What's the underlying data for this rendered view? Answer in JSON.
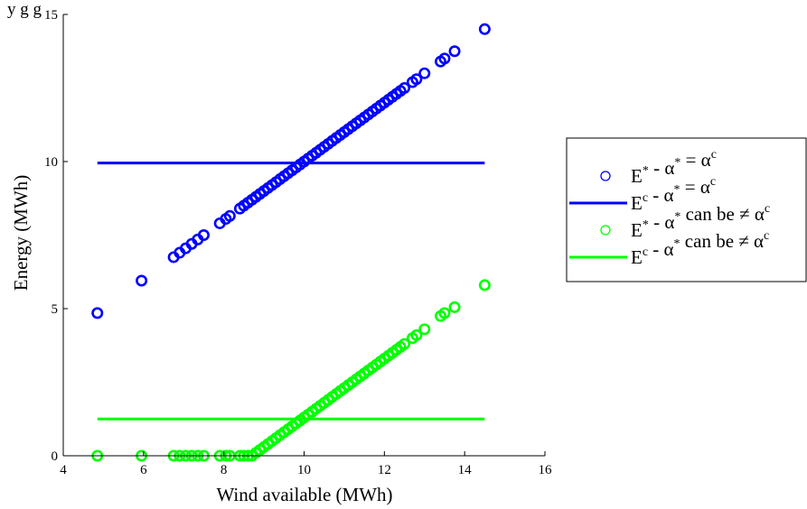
{
  "chart_data": {
    "type": "scatter",
    "title": "",
    "header_fragment": "y       g g",
    "xlabel": "Wind available (MWh)",
    "ylabel": "Energy (MWh)",
    "xlim": [
      4,
      16
    ],
    "ylim": [
      0,
      15
    ],
    "xticks": [
      4,
      6,
      8,
      10,
      12,
      14,
      16
    ],
    "yticks": [
      0,
      5,
      10,
      15
    ],
    "grid": false,
    "legend_position": "right-outside",
    "colors": {
      "blue": "#0000ff",
      "green": "#00ff00",
      "axis": "#000000"
    },
    "series": [
      {
        "name": "E* - α* = αc",
        "kind": "markers",
        "marker": "circle-open",
        "color": "#0000ff",
        "x": [
          4.85,
          5.95,
          6.75,
          6.9,
          7.05,
          7.2,
          7.35,
          7.5,
          7.9,
          8.05,
          8.15,
          8.4,
          8.5,
          8.6,
          8.7,
          8.8,
          8.9,
          9.0,
          9.1,
          9.2,
          9.3,
          9.4,
          9.5,
          9.6,
          9.7,
          9.8,
          9.9,
          10.0,
          10.1,
          10.2,
          10.3,
          10.4,
          10.5,
          10.6,
          10.7,
          10.8,
          10.9,
          11.0,
          11.1,
          11.2,
          11.3,
          11.4,
          11.5,
          11.6,
          11.7,
          11.8,
          11.9,
          12.0,
          12.1,
          12.2,
          12.3,
          12.4,
          12.5,
          12.7,
          12.8,
          13.0,
          13.4,
          13.5,
          13.75,
          14.5
        ],
        "y": [
          4.85,
          5.95,
          6.75,
          6.9,
          7.05,
          7.2,
          7.35,
          7.5,
          7.9,
          8.05,
          8.15,
          8.4,
          8.5,
          8.6,
          8.7,
          8.8,
          8.9,
          9.0,
          9.1,
          9.2,
          9.3,
          9.4,
          9.5,
          9.6,
          9.7,
          9.8,
          9.9,
          10.0,
          10.1,
          10.2,
          10.3,
          10.4,
          10.5,
          10.6,
          10.7,
          10.8,
          10.9,
          11.0,
          11.1,
          11.2,
          11.3,
          11.4,
          11.5,
          11.6,
          11.7,
          11.8,
          11.9,
          12.0,
          12.1,
          12.2,
          12.3,
          12.4,
          12.5,
          12.7,
          12.8,
          13.0,
          13.4,
          13.5,
          13.75,
          14.5
        ]
      },
      {
        "name": "Ec - α* = αc",
        "kind": "line",
        "color": "#0000ff",
        "x": [
          4.85,
          14.5
        ],
        "y": [
          9.95,
          9.95
        ]
      },
      {
        "name": "E* - α* can be ≠ αc",
        "kind": "markers",
        "marker": "circle-open",
        "color": "#00ff00",
        "x": [
          4.85,
          5.95,
          6.75,
          6.9,
          7.05,
          7.2,
          7.35,
          7.5,
          7.9,
          8.05,
          8.15,
          8.4,
          8.5,
          8.6,
          8.7,
          8.8,
          8.9,
          9.0,
          9.1,
          9.2,
          9.3,
          9.4,
          9.5,
          9.6,
          9.7,
          9.8,
          9.9,
          10.0,
          10.1,
          10.2,
          10.3,
          10.4,
          10.5,
          10.6,
          10.7,
          10.8,
          10.9,
          11.0,
          11.1,
          11.2,
          11.3,
          11.4,
          11.5,
          11.6,
          11.7,
          11.8,
          11.9,
          12.0,
          12.1,
          12.2,
          12.3,
          12.4,
          12.5,
          12.7,
          12.8,
          13.0,
          13.4,
          13.5,
          13.75,
          14.5
        ],
        "y": [
          0,
          0,
          0,
          0,
          0,
          0,
          0,
          0,
          0,
          0,
          0,
          0,
          0,
          0,
          0,
          0.1,
          0.2,
          0.3,
          0.4,
          0.5,
          0.6,
          0.7,
          0.8,
          0.9,
          1.0,
          1.1,
          1.2,
          1.3,
          1.4,
          1.5,
          1.6,
          1.7,
          1.8,
          1.9,
          2.0,
          2.1,
          2.2,
          2.3,
          2.4,
          2.5,
          2.6,
          2.7,
          2.8,
          2.9,
          3.0,
          3.1,
          3.2,
          3.3,
          3.4,
          3.5,
          3.6,
          3.7,
          3.8,
          4.0,
          4.1,
          4.3,
          4.75,
          4.85,
          5.05,
          5.8
        ]
      },
      {
        "name": "Ec - α* can be ≠ αc",
        "kind": "line",
        "color": "#00ff00",
        "x": [
          4.85,
          14.5
        ],
        "y": [
          1.25,
          1.25
        ]
      }
    ],
    "legend": [
      {
        "kind": "markers",
        "color": "#0000ff",
        "parts": [
          [
            "E",
            "*"
          ],
          [
            " - α",
            "*"
          ],
          [
            " = α",
            "c"
          ]
        ]
      },
      {
        "kind": "line",
        "color": "#0000ff",
        "parts": [
          [
            "E",
            "c"
          ],
          [
            " - α",
            "*"
          ],
          [
            " = α",
            "c"
          ]
        ]
      },
      {
        "kind": "markers",
        "color": "#00ff00",
        "parts": [
          [
            "E",
            "*"
          ],
          [
            " - α",
            "*"
          ],
          [
            " can be ≠ α",
            "c"
          ]
        ]
      },
      {
        "kind": "line",
        "color": "#00ff00",
        "parts": [
          [
            "E",
            "c"
          ],
          [
            " - α",
            "*"
          ],
          [
            " can be ≠ α",
            "c"
          ]
        ]
      }
    ]
  }
}
